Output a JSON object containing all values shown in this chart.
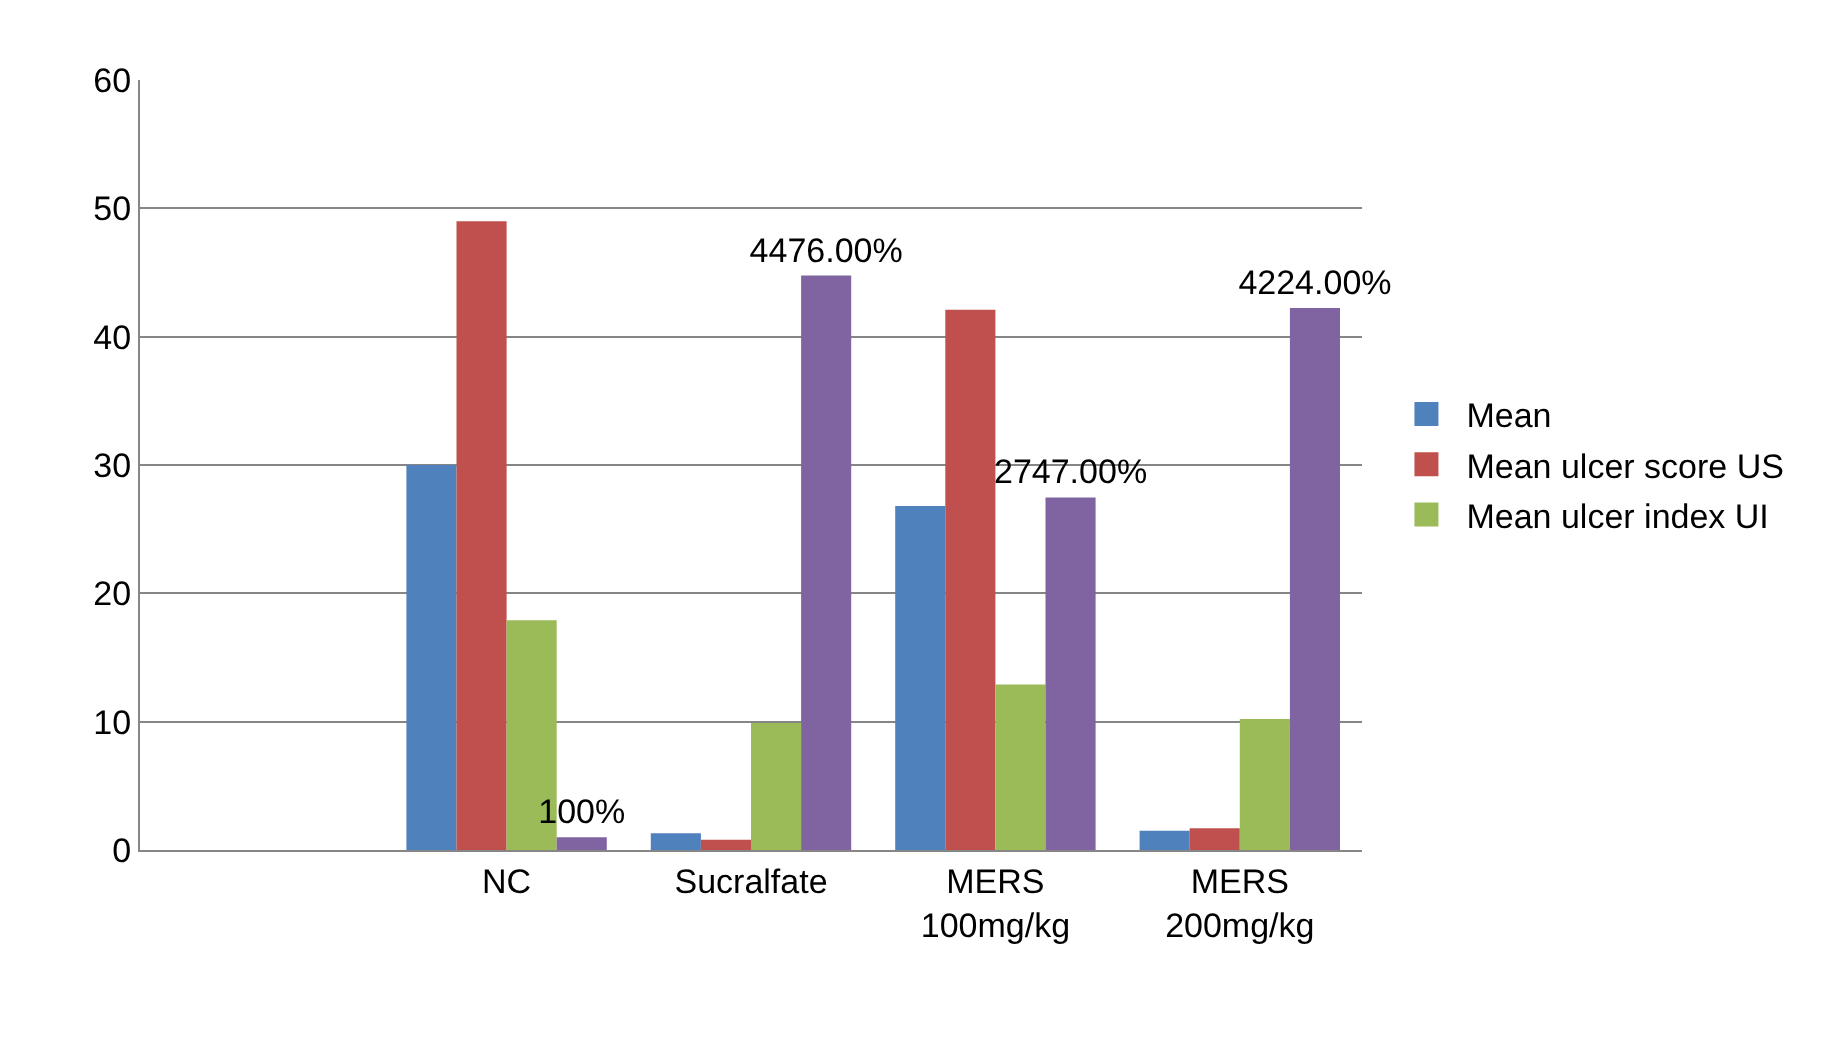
{
  "chart_data": {
    "type": "bar",
    "categories": [
      null,
      "NC",
      "Sucralfate",
      "MERS 100mg/kg",
      "MERS 200mg/kg"
    ],
    "series": [
      {
        "name": "Mean",
        "color": "#4f81bd",
        "values": [
          null,
          30,
          1.3,
          26.8,
          1.5
        ]
      },
      {
        "name": "Mean ulcer score US",
        "color": "#c0504d",
        "values": [
          null,
          49,
          0.8,
          42.1,
          1.7
        ]
      },
      {
        "name": "Mean ulcer index UI",
        "color": "#9bbb59",
        "values": [
          null,
          17.9,
          9.9,
          12.9,
          10.2
        ]
      },
      {
        "color": "#8064a2",
        "values": [
          null,
          1,
          44.76,
          27.47,
          42.24
        ],
        "value_labels": [
          null,
          "100%",
          "4476.00%",
          "2747.00%",
          "4224.00%"
        ]
      }
    ],
    "ylim": [
      0,
      60
    ],
    "yticks": [
      0,
      10,
      20,
      30,
      40,
      50,
      60
    ],
    "grid": "y",
    "legend": "right"
  }
}
